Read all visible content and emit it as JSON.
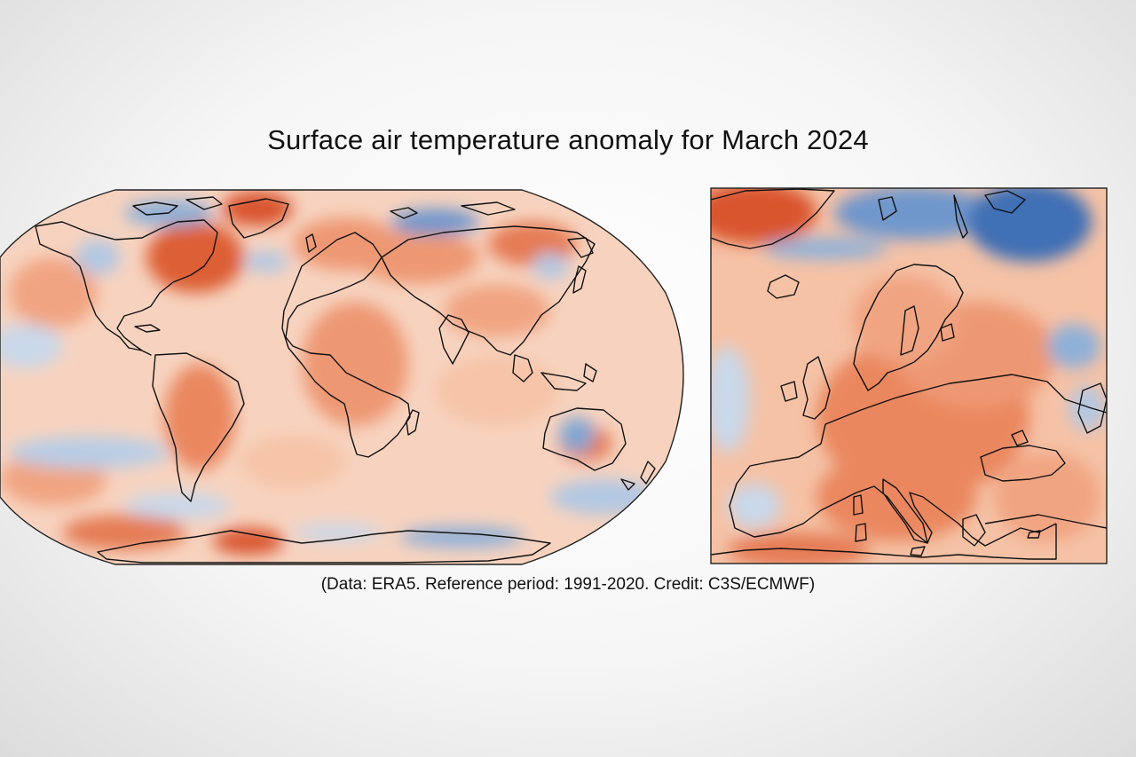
{
  "title": "Surface air temperature anomaly for March 2024",
  "credit": "(Data: ERA5.  Reference period: 1991-2020.  Credit: C3S/ECMWF)",
  "colors": {
    "warm_strong": "#d9552e",
    "warm": "#ee9873",
    "warm_light": "#f6c4a8",
    "neutral": "#f7ece5",
    "cool_light": "#c9d8ea",
    "cool": "#7fa6d3",
    "cool_strong": "#3f6fb5",
    "coastline": "#111111"
  },
  "panels": [
    {
      "name": "global-map",
      "projection": "Robinson",
      "region": "World"
    },
    {
      "name": "europe-map",
      "projection": "regional",
      "region": "Europe"
    }
  ]
}
